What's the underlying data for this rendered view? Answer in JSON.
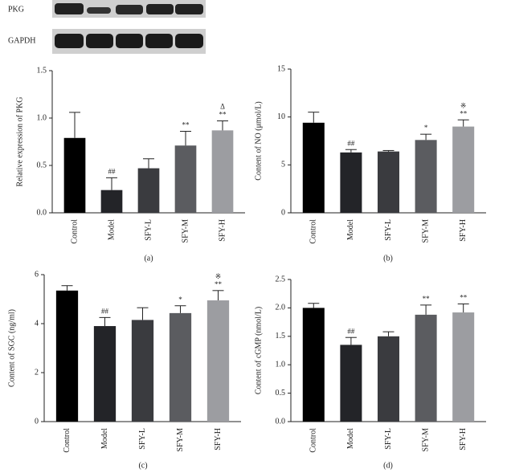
{
  "blot": {
    "labels": [
      "PKG",
      "GAPDH"
    ]
  },
  "chart_data": [
    {
      "type": "bar",
      "caption": "(a)",
      "ylabel": "Relative expression of PKG",
      "categories": [
        "Control",
        "Model",
        "SFY-L",
        "SFY-M",
        "SFY-H"
      ],
      "values": [
        0.79,
        0.24,
        0.47,
        0.71,
        0.87
      ],
      "errors": [
        0.27,
        0.13,
        0.1,
        0.15,
        0.1
      ],
      "colors": [
        "#000000",
        "#232428",
        "#3a3b3f",
        "#5b5c60",
        "#9c9da1"
      ],
      "annotations": [
        null,
        [
          "##"
        ],
        null,
        [
          "**"
        ],
        [
          "Δ",
          "**"
        ]
      ],
      "ylim": [
        0,
        1.5
      ],
      "yticks": [
        {
          "value": 0,
          "label": "0.0"
        },
        0.5,
        {
          "value": 1,
          "label": "1.0"
        },
        1.5
      ]
    },
    {
      "type": "bar",
      "caption": "(b)",
      "ylabel": "Content of NO (μmol/L)",
      "categories": [
        "Control",
        "Model",
        "SFY-L",
        "SFY-M",
        "SFY-H"
      ],
      "values": [
        9.4,
        6.3,
        6.4,
        7.6,
        9.0
      ],
      "errors": [
        1.1,
        0.3,
        0.1,
        0.6,
        0.7
      ],
      "colors": [
        "#000000",
        "#232428",
        "#3a3b3f",
        "#5b5c60",
        "#9c9da1"
      ],
      "annotations": [
        null,
        [
          "##"
        ],
        null,
        [
          "*"
        ],
        [
          "※",
          "**"
        ]
      ],
      "ylim": [
        0,
        15
      ],
      "yticks": [
        0,
        5,
        10,
        15
      ]
    },
    {
      "type": "bar",
      "caption": "(c)",
      "ylabel": "Content of SGC (ng/ml)",
      "categories": [
        "Control",
        "Model",
        "SFY-L",
        "SFY-M",
        "SFY-H"
      ],
      "values": [
        5.35,
        3.9,
        4.15,
        4.43,
        4.95
      ],
      "errors": [
        0.2,
        0.35,
        0.5,
        0.3,
        0.4
      ],
      "colors": [
        "#000000",
        "#232428",
        "#3a3b3f",
        "#5b5c60",
        "#9c9da1"
      ],
      "annotations": [
        null,
        [
          "##"
        ],
        null,
        [
          "*"
        ],
        [
          "※",
          "**"
        ]
      ],
      "ylim": [
        0,
        6
      ],
      "yticks": [
        0,
        2,
        4,
        6
      ]
    },
    {
      "type": "bar",
      "caption": "(d)",
      "ylabel": "Content of cGMP (nmol/L)",
      "categories": [
        "Control",
        "Model",
        "SFY-L",
        "SFY-M",
        "SFY-H"
      ],
      "values": [
        2.0,
        1.35,
        1.5,
        1.88,
        1.92
      ],
      "errors": [
        0.08,
        0.13,
        0.08,
        0.17,
        0.15
      ],
      "colors": [
        "#000000",
        "#232428",
        "#3a3b3f",
        "#5b5c60",
        "#9c9da1"
      ],
      "annotations": [
        null,
        [
          "##"
        ],
        null,
        [
          "**"
        ],
        [
          "**"
        ]
      ],
      "ylim": [
        0,
        2.5
      ],
      "yticks": [
        {
          "value": 0,
          "label": "0.0"
        },
        0.5,
        {
          "value": 1,
          "label": "1.0"
        },
        1.5,
        {
          "value": 2,
          "label": "2.0"
        },
        2.5
      ]
    }
  ]
}
